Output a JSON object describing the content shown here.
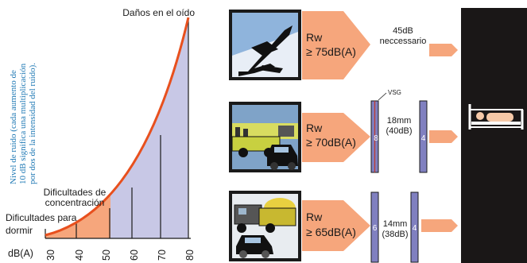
{
  "left_chart": {
    "top_label": "Daños en el oído",
    "ylabel": "Nivel de ruido (cada aumento de 10 dB significa una multiplicación por dos de la intensidad del ruido).",
    "ylabel_lines": [
      "Nivel de ruido (cada aumento de",
      "10 dB significa una multiplicación",
      "por dos de la intensidad del ruido)."
    ],
    "xlabel": "dB(A)",
    "ticks": [
      "30",
      "40",
      "50",
      "60",
      "70",
      "80"
    ],
    "concentration_label": [
      "Dificultades de",
      "concentración"
    ],
    "sleep_label": [
      "Dificultades para",
      "dormir"
    ],
    "colors": {
      "fill": "#c8c8e6",
      "curve": "#e8501e",
      "band": "#f6a67c",
      "ylabel": "#1e78b4"
    }
  },
  "rows": [
    {
      "id": "plane",
      "rw_label": "Rw",
      "rw_value": "≥ 75dB(A)",
      "note_lines": [
        "45dB",
        "neccessario"
      ]
    },
    {
      "id": "street",
      "rw_label": "Rw",
      "rw_value": "≥ 70dB(A)",
      "vsg_label": "VSG",
      "pane1": "8",
      "pane2": "4",
      "gap_lines": [
        "18mm",
        "(40dB)"
      ]
    },
    {
      "id": "traffic",
      "rw_label": "Rw",
      "rw_value": "≥ 65dB(A)",
      "pane1": "6",
      "pane2": "4",
      "gap_lines": [
        "14mm",
        "(38dB)"
      ]
    }
  ],
  "colors": {
    "arrow": "#f6a67c",
    "pane": "#8080c0",
    "room": "#1a1717"
  }
}
